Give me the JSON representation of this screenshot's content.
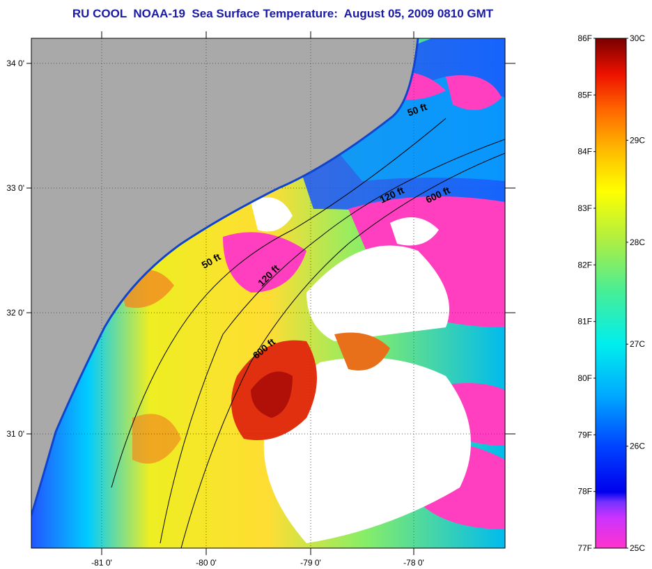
{
  "title": "RU COOL  NOAA-19  Sea Surface Temperature:  August 05, 2009 0810 GMT",
  "map": {
    "lat_labels": [
      "34 0'",
      "33 0'",
      "32 0'",
      "31 0'"
    ],
    "lon_labels": [
      "-81 0'",
      "-80 0'",
      "-79 0'",
      "-78 0'"
    ],
    "contour_labels": [
      "50 ft",
      "120 ft",
      "600 ft",
      "50 ft",
      "120 ft",
      "600 ft"
    ],
    "colors": {
      "land": "#a9a9a9",
      "cloud": "#ffffff",
      "warm": "#e03010",
      "cool": "#1040ff",
      "cold": "#ff3fbf"
    }
  },
  "colorbar": {
    "f_labels": [
      "86F",
      "85F",
      "84F",
      "83F",
      "82F",
      "81F",
      "80F",
      "79F",
      "78F",
      "77F"
    ],
    "c_labels": [
      "30C",
      "29C",
      "28C",
      "27C",
      "26C",
      "25C"
    ]
  }
}
